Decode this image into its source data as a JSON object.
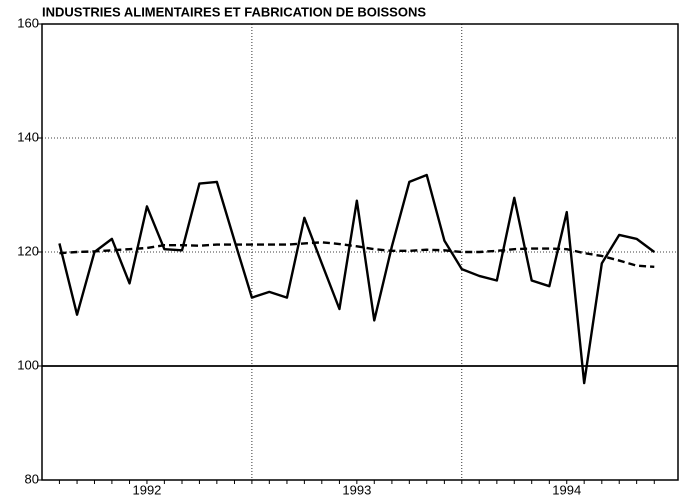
{
  "chart_data": {
    "type": "line",
    "title": "INDUSTRIES ALIMENTAIRES ET FABRICATION DE BOISSONS",
    "x": [
      1992.083,
      1992.167,
      1992.25,
      1992.333,
      1992.417,
      1992.5,
      1992.583,
      1992.667,
      1992.75,
      1992.833,
      1992.917,
      1993.0,
      1993.083,
      1993.167,
      1993.25,
      1993.333,
      1993.417,
      1993.5,
      1993.583,
      1993.667,
      1993.75,
      1993.833,
      1993.917,
      1994.0,
      1994.083,
      1994.167,
      1994.25,
      1994.333,
      1994.417,
      1994.5,
      1994.583,
      1994.667,
      1994.75,
      1994.833,
      1994.917
    ],
    "series": [
      {
        "color": "#000000",
        "dash": "none",
        "values": [
          121.5,
          109,
          120,
          122.3,
          114.5,
          128,
          120.5,
          120.3,
          132,
          132.3,
          122,
          112,
          113,
          112,
          126,
          118,
          110,
          129,
          108,
          121,
          132.3,
          133.5,
          122,
          117,
          115.8,
          115,
          129.5,
          115,
          114,
          127,
          97,
          118,
          123,
          122.3,
          120
        ]
      },
      {
        "color": "#000000",
        "dash": "dashed",
        "values": [
          119.8,
          120,
          120.1,
          120.3,
          120.5,
          120.7,
          121.2,
          121.2,
          121.1,
          121.3,
          121.3,
          121.3,
          121.3,
          121.3,
          121.5,
          121.7,
          121.4,
          121,
          120.5,
          120.2,
          120.2,
          120.4,
          120.3,
          120,
          120,
          120.2,
          120.5,
          120.6,
          120.6,
          120.5,
          119.8,
          119.3,
          118.5,
          117.6,
          117.4
        ]
      }
    ],
    "xlim": [
      1992,
      1995.03
    ],
    "xticks": [
      {
        "value": 1992.5,
        "label": "1992"
      },
      {
        "value": 1993.5,
        "label": "1993"
      },
      {
        "value": 1994.5,
        "label": "1994"
      }
    ],
    "xgrid": [
      1993,
      1994
    ],
    "ylim": [
      80,
      160
    ],
    "yticks": [
      80,
      100,
      120,
      140,
      160
    ],
    "hline": 100,
    "grid": true
  }
}
